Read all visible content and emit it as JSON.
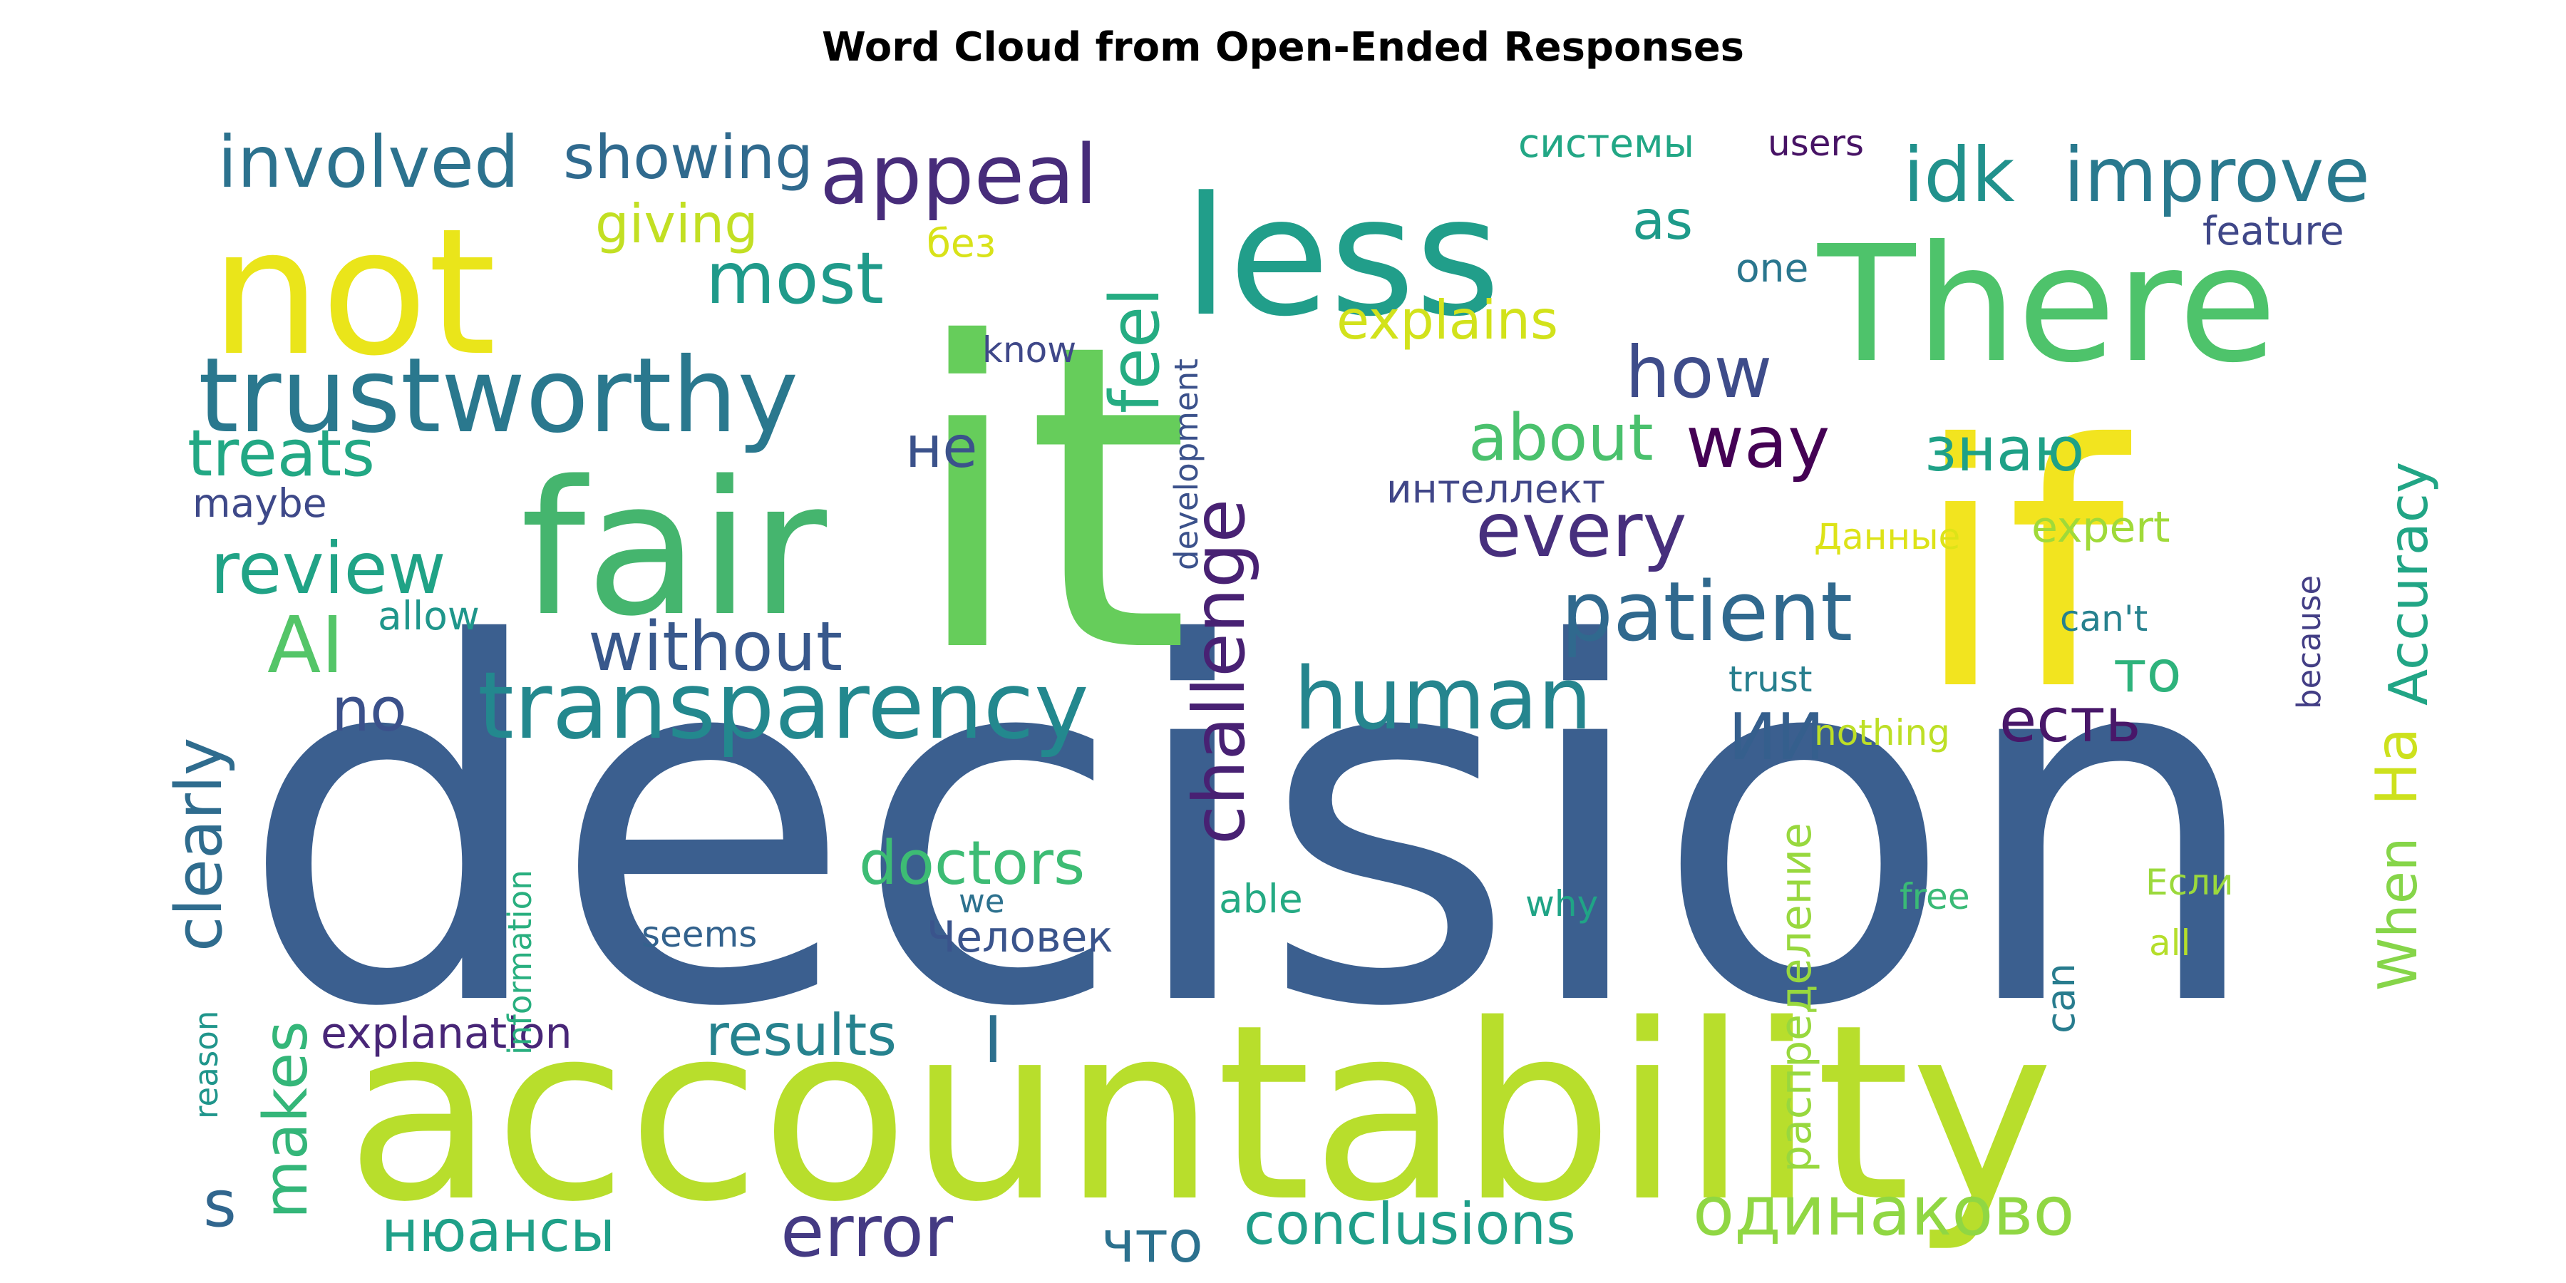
{
  "chart_data": {
    "type": "wordcloud",
    "title": "Word Cloud from Open-Ended Responses",
    "colormap": "viridis",
    "words": [
      {
        "text": "decision",
        "weight": 100,
        "color": "#3b5f8f"
      },
      {
        "text": "it",
        "weight": 68,
        "color": "#66cd5b"
      },
      {
        "text": "accountability",
        "weight": 47,
        "color": "#b8de2c"
      },
      {
        "text": "if",
        "weight": 45,
        "color": "#f2e41f"
      },
      {
        "text": "fair",
        "weight": 33,
        "color": "#45b56e"
      },
      {
        "text": "less",
        "weight": 32,
        "color": "#219e8a"
      },
      {
        "text": "There",
        "weight": 31,
        "color": "#4ec36b"
      },
      {
        "text": "not",
        "weight": 29,
        "color": "#eae51a"
      },
      {
        "text": "trustworthy",
        "weight": 19,
        "color": "#2a788e"
      },
      {
        "text": "transparency",
        "weight": 19,
        "color": "#23888e"
      },
      {
        "text": "human",
        "weight": 16,
        "color": "#25858e"
      },
      {
        "text": "patient",
        "weight": 15,
        "color": "#30698e"
      },
      {
        "text": "appeal",
        "weight": 15,
        "color": "#472c7a"
      },
      {
        "text": "improve",
        "weight": 15,
        "color": "#29798e"
      },
      {
        "text": "involved",
        "weight": 14,
        "color": "#2c728e"
      },
      {
        "text": "error",
        "weight": 14,
        "color": "#443a83"
      },
      {
        "text": "challenge",
        "weight": 14,
        "color": "#482173"
      },
      {
        "text": "одинаково",
        "weight": 14,
        "color": "#90d743"
      },
      {
        "text": "AI",
        "weight": 14,
        "color": "#54c568"
      },
      {
        "text": "idk",
        "weight": 14,
        "color": "#21918c"
      },
      {
        "text": "every",
        "weight": 14,
        "color": "#472f7d"
      },
      {
        "text": "way",
        "weight": 14,
        "color": "#440154"
      },
      {
        "text": "how",
        "weight": 14,
        "color": "#3e4c8a"
      },
      {
        "text": "without",
        "weight": 13,
        "color": "#38588c"
      },
      {
        "text": "review",
        "weight": 13,
        "color": "#20a386"
      },
      {
        "text": "most",
        "weight": 13,
        "color": "#1f9a8a"
      },
      {
        "text": "showing",
        "weight": 12,
        "color": "#306a8e"
      },
      {
        "text": "treats",
        "weight": 12,
        "color": "#22a884"
      },
      {
        "text": "clearly",
        "weight": 12,
        "color": "#2f6c8e"
      },
      {
        "text": "feel",
        "weight": 12,
        "color": "#25ac82"
      },
      {
        "text": "doctors",
        "weight": 12,
        "color": "#3dbc74"
      },
      {
        "text": "знаю",
        "weight": 12,
        "color": "#1fa187"
      },
      {
        "text": "about",
        "weight": 12,
        "color": "#4ac16d"
      },
      {
        "text": "conclusions",
        "weight": 12,
        "color": "#1f9e89"
      },
      {
        "text": "есть",
        "weight": 12,
        "color": "#481769"
      },
      {
        "text": "ИИ",
        "weight": 12,
        "color": "#355f8d"
      },
      {
        "text": "results",
        "weight": 11,
        "color": "#26828e"
      },
      {
        "text": "нюансы",
        "weight": 11,
        "color": "#1fa088"
      },
      {
        "text": "что",
        "weight": 11,
        "color": "#2c718e"
      },
      {
        "text": "На",
        "weight": 11,
        "color": "#cde11d"
      },
      {
        "text": "Accuracy",
        "weight": 11,
        "color": "#21a585"
      },
      {
        "text": "When",
        "weight": 11,
        "color": "#86d549"
      },
      {
        "text": "то",
        "weight": 11,
        "color": "#2eb37c"
      },
      {
        "text": "makes",
        "weight": 11,
        "color": "#34b679"
      },
      {
        "text": "no",
        "weight": 11,
        "color": "#3b518b"
      },
      {
        "text": "I",
        "weight": 11,
        "color": "#2d708e"
      },
      {
        "text": "s",
        "weight": 11,
        "color": "#31668e"
      },
      {
        "text": "не",
        "weight": 11,
        "color": "#3b528b"
      },
      {
        "text": "explains",
        "weight": 10,
        "color": "#d2e21b"
      },
      {
        "text": "giving",
        "weight": 10,
        "color": "#c2df23"
      },
      {
        "text": "explanation",
        "weight": 9,
        "color": "#482677"
      },
      {
        "text": "Человек",
        "weight": 9,
        "color": "#3a548c"
      },
      {
        "text": "as",
        "weight": 9,
        "color": "#1e9b8a"
      },
      {
        "text": "expert",
        "weight": 9,
        "color": "#a0da39"
      },
      {
        "text": "распределение",
        "weight": 9,
        "color": "#98d83e"
      },
      {
        "text": "интеллект",
        "weight": 8,
        "color": "#404688"
      },
      {
        "text": "системы",
        "weight": 8,
        "color": "#22a785"
      },
      {
        "text": "able",
        "weight": 8,
        "color": "#24aa83"
      },
      {
        "text": "feature",
        "weight": 8,
        "color": "#3f4788"
      },
      {
        "text": "maybe",
        "weight": 8,
        "color": "#3e4989"
      },
      {
        "text": "allow",
        "weight": 8,
        "color": "#1f968b"
      },
      {
        "text": "без",
        "weight": 8,
        "color": "#d8e219"
      },
      {
        "text": "one",
        "weight": 8,
        "color": "#2a768e"
      },
      {
        "text": "can",
        "weight": 8,
        "color": "#287c8e"
      },
      {
        "text": "seems",
        "weight": 7,
        "color": "#33628d"
      },
      {
        "text": "trust",
        "weight": 7,
        "color": "#277f8e"
      },
      {
        "text": "nothing",
        "weight": 7,
        "color": "#bddf26"
      },
      {
        "text": "can't",
        "weight": 7,
        "color": "#26818e"
      },
      {
        "text": "we",
        "weight": 7,
        "color": "#2d718e"
      },
      {
        "text": "know",
        "weight": 7,
        "color": "#3f4889"
      },
      {
        "text": "users",
        "weight": 7,
        "color": "#471365"
      },
      {
        "text": "development",
        "weight": 7,
        "color": "#3b518b"
      },
      {
        "text": "information",
        "weight": 7,
        "color": "#29af7f"
      },
      {
        "text": "reason",
        "weight": 7,
        "color": "#1f958b"
      },
      {
        "text": "Данные",
        "weight": 7,
        "color": "#dde318"
      },
      {
        "text": "free",
        "weight": 7,
        "color": "#3aba76"
      },
      {
        "text": "why",
        "weight": 7,
        "color": "#20a486"
      },
      {
        "text": "because",
        "weight": 7,
        "color": "#433e85"
      },
      {
        "text": "all",
        "weight": 7,
        "color": "#b5de2b"
      },
      {
        "text": "Если",
        "weight": 7,
        "color": "#9bd93c"
      }
    ]
  }
}
